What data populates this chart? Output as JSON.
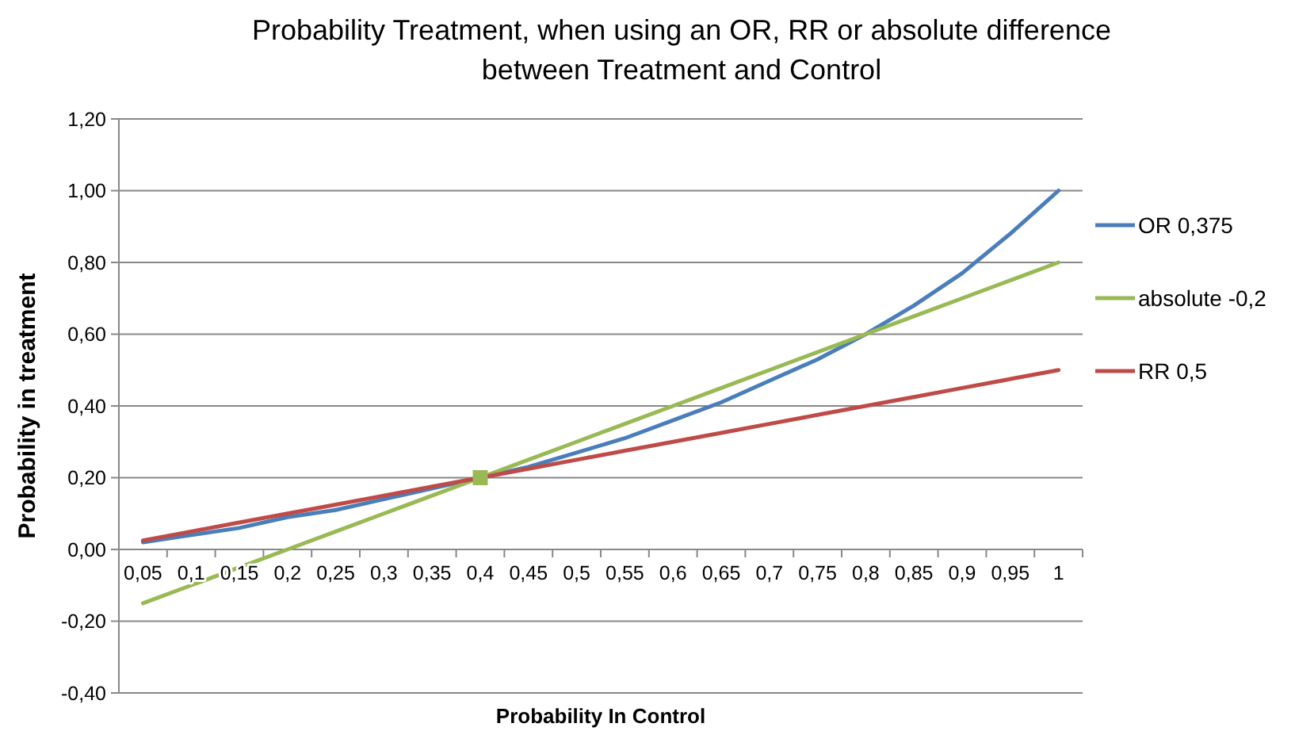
{
  "chart_data": {
    "type": "line",
    "title": "Probability Treatment, when using an OR, RR or absolute difference between Treatment and Control",
    "xlabel": "Probability In Control",
    "ylabel": "Probability in treatment",
    "categories": [
      "0,05",
      "0,1",
      "0,15",
      "0,2",
      "0,25",
      "0,3",
      "0,35",
      "0,4",
      "0,45",
      "0,5",
      "0,55",
      "0,6",
      "0,65",
      "0,7",
      "0,75",
      "0,8",
      "0,85",
      "0,9",
      "0,95",
      "1"
    ],
    "series": [
      {
        "name": "OR 0,375",
        "color": "#4a7ebb",
        "values": [
          0.02,
          0.04,
          0.06,
          0.09,
          0.11,
          0.14,
          0.17,
          0.2,
          0.23,
          0.27,
          0.31,
          0.36,
          0.41,
          0.47,
          0.53,
          0.6,
          0.68,
          0.77,
          0.88,
          1.0
        ]
      },
      {
        "name": "absolute -0,2",
        "color": "#98b954",
        "values": [
          -0.15,
          -0.1,
          -0.05,
          0.0,
          0.05,
          0.1,
          0.15,
          0.2,
          0.25,
          0.3,
          0.35,
          0.4,
          0.45,
          0.5,
          0.55,
          0.6,
          0.65,
          0.7,
          0.75,
          0.8
        ]
      },
      {
        "name": "RR 0,5",
        "color": "#be4b48",
        "values": [
          0.025,
          0.05,
          0.075,
          0.1,
          0.125,
          0.15,
          0.175,
          0.2,
          0.225,
          0.25,
          0.275,
          0.3,
          0.325,
          0.35,
          0.375,
          0.4,
          0.425,
          0.45,
          0.475,
          0.5
        ]
      },
      {
        "type": "scatter",
        "marker": "square",
        "color": "#98b954",
        "x": [
          "0,4"
        ],
        "values": [
          0.2
        ]
      }
    ],
    "ylim": [
      -0.4,
      1.2
    ],
    "yticks": [
      {
        "value": -0.4,
        "label": "-0,40"
      },
      {
        "value": -0.2,
        "label": "-0,20"
      },
      {
        "value": 0,
        "label": "0,00"
      },
      {
        "value": 0.2,
        "label": "0,20"
      },
      {
        "value": 0.4,
        "label": "0,40"
      },
      {
        "value": 0.6,
        "label": "0,60"
      },
      {
        "value": 0.8,
        "label": "0,80"
      },
      {
        "value": 1.0,
        "label": "1,00"
      },
      {
        "value": 1.2,
        "label": "1,20"
      }
    ],
    "grid": "y",
    "legend": "right",
    "marker": "none",
    "line_style": "solid"
  }
}
